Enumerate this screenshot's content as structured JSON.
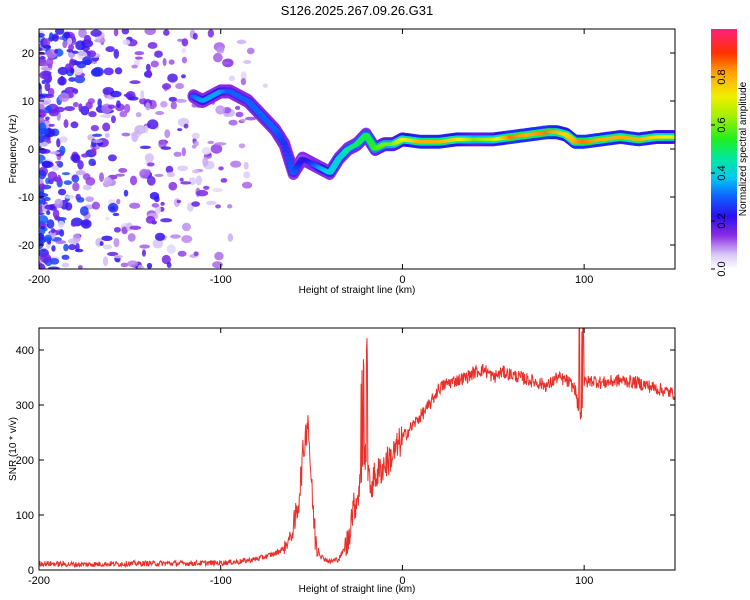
{
  "title": "S126.2025.267.09.26.G31",
  "chart_data": [
    {
      "type": "heatmap",
      "xlabel": "Height of straight line (km)",
      "ylabel": "Frequency (Hz)",
      "xlim": [
        -200,
        150
      ],
      "ylim": [
        -25,
        25
      ],
      "xticks": [
        -200,
        -100,
        0,
        100
      ],
      "yticks": [
        20,
        10,
        0,
        -10,
        -20
      ],
      "colorbar": {
        "label": "Normalized spectral amplitude",
        "ticks": [
          "0.0",
          "0.2",
          "0.4",
          "0.6",
          "0.8"
        ],
        "range": [
          0,
          1
        ]
      },
      "ridge": {
        "x": [
          -115,
          -110,
          -105,
          -100,
          -95,
          -90,
          -85,
          -80,
          -75,
          -70,
          -65,
          -60,
          -55,
          -50,
          -45,
          -40,
          -35,
          -30,
          -25,
          -20,
          -15,
          -10,
          -5,
          0,
          10,
          20,
          30,
          40,
          50,
          60,
          70,
          80,
          85,
          90,
          95,
          100,
          110,
          120,
          130,
          140,
          150
        ],
        "freq": [
          11,
          10,
          11,
          12,
          12,
          11,
          10,
          8,
          6,
          4,
          1,
          -5,
          -2,
          -3,
          -4,
          -5,
          -2,
          0,
          1,
          3,
          0,
          1,
          1,
          2,
          1.5,
          1.5,
          2,
          2,
          2,
          2.5,
          3,
          3.5,
          3.5,
          3,
          1.5,
          1.5,
          2,
          2.5,
          2,
          2.5,
          2.5
        ],
        "amplitude": [
          0.3,
          0.35,
          0.35,
          0.35,
          0.3,
          0.3,
          0.3,
          0.3,
          0.3,
          0.3,
          0.25,
          0.3,
          0.2,
          0.25,
          0.35,
          0.4,
          0.4,
          0.45,
          0.5,
          0.5,
          0.55,
          0.6,
          0.6,
          0.7,
          0.8,
          0.8,
          0.75,
          0.6,
          0.65,
          0.85,
          0.8,
          0.85,
          0.8,
          0.75,
          0.8,
          0.85,
          0.8,
          0.8,
          0.8,
          0.75,
          0.7
        ]
      }
    },
    {
      "type": "line",
      "xlabel": "Height of straight line (km)",
      "ylabel": "SNR (10 * v/v)",
      "xlim": [
        -200,
        150
      ],
      "ylim": [
        0,
        440
      ],
      "xticks": [
        -200,
        -100,
        0,
        100
      ],
      "yticks": [
        0,
        100,
        200,
        300,
        400
      ],
      "series": [
        {
          "name": "SNR",
          "color": "#e8302a",
          "x": [
            -200,
            -180,
            -160,
            -140,
            -120,
            -100,
            -90,
            -80,
            -70,
            -65,
            -60,
            -57,
            -55,
            -52,
            -50,
            -48,
            -45,
            -40,
            -35,
            -30,
            -28,
            -25,
            -22,
            -20,
            -18,
            -15,
            -10,
            -5,
            0,
            5,
            10,
            15,
            20,
            25,
            30,
            35,
            40,
            45,
            50,
            55,
            60,
            65,
            70,
            75,
            80,
            85,
            90,
            95,
            98,
            100,
            105,
            110,
            120,
            130,
            140,
            150
          ],
          "y": [
            12,
            10,
            11,
            12,
            12,
            13,
            15,
            20,
            30,
            40,
            70,
            130,
            200,
            280,
            150,
            60,
            25,
            15,
            20,
            50,
            100,
            130,
            180,
            220,
            150,
            170,
            190,
            210,
            240,
            260,
            280,
            300,
            330,
            340,
            345,
            350,
            360,
            365,
            350,
            360,
            355,
            350,
            345,
            340,
            335,
            350,
            345,
            330,
            270,
            340,
            345,
            340,
            345,
            340,
            330,
            320
          ]
        }
      ]
    }
  ]
}
